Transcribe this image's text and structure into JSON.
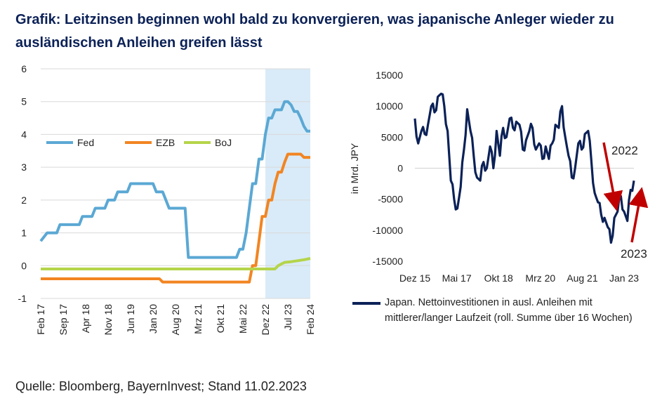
{
  "title": "Grafik: Leitzinsen beginnen wohl bald zu konvergieren, was japanische Anleger wieder zu ausländischen Anleihen greifen lässt",
  "source": "Quelle: Bloomberg, BayernInvest; Stand 11.02.2023",
  "colors": {
    "fed": "#5ba8d4",
    "ezb": "#f28522",
    "boj": "#b5d44a",
    "japan": "#0b2157",
    "arrow": "#c00000",
    "shade": "#d9ebf8"
  },
  "chart_data": [
    {
      "type": "line",
      "ylim": [
        -1,
        6
      ],
      "yticks": [
        "6",
        "5",
        "4",
        "3",
        "2",
        "1",
        "0",
        "-1"
      ],
      "xticks": [
        "Feb 17",
        "Sep 17",
        "Apr 18",
        "Nov 18",
        "Jun 19",
        "Jan 20",
        "Aug 20",
        "Mrz 21",
        "Okt 21",
        "Mai 22",
        "Dez 22",
        "Jul 23",
        "Feb 24"
      ],
      "shaded_region": [
        "Dez 22",
        "Feb 24"
      ],
      "legend_placement": "middle-left",
      "series": [
        {
          "name": "Fed",
          "color": "#5ba8d4",
          "values": [
            [
              0,
              0.75
            ],
            [
              2,
              1.0
            ],
            [
              5,
              1.0
            ],
            [
              6,
              1.25
            ],
            [
              12,
              1.25
            ],
            [
              13,
              1.5
            ],
            [
              16,
              1.5
            ],
            [
              17,
              1.75
            ],
            [
              20,
              1.75
            ],
            [
              21,
              2.0
            ],
            [
              23,
              2.0
            ],
            [
              24,
              2.25
            ],
            [
              27,
              2.25
            ],
            [
              28,
              2.5
            ],
            [
              35,
              2.5
            ],
            [
              36,
              2.25
            ],
            [
              38,
              2.25
            ],
            [
              39,
              2.0
            ],
            [
              40,
              1.75
            ],
            [
              45,
              1.75
            ],
            [
              46,
              0.25
            ],
            [
              61,
              0.25
            ],
            [
              62,
              0.5
            ],
            [
              63,
              0.5
            ],
            [
              64,
              1.0
            ],
            [
              65,
              1.75
            ],
            [
              66,
              2.5
            ],
            [
              67,
              2.5
            ],
            [
              68,
              3.25
            ],
            [
              69,
              3.25
            ],
            [
              70,
              4.0
            ],
            [
              71,
              4.5
            ],
            [
              72,
              4.5
            ],
            [
              73,
              4.75
            ],
            [
              75,
              4.75
            ],
            [
              76,
              5.0
            ],
            [
              77,
              5.0
            ],
            [
              78,
              4.9
            ],
            [
              79,
              4.7
            ],
            [
              80,
              4.7
            ],
            [
              81,
              4.5
            ],
            [
              82,
              4.25
            ],
            [
              83,
              4.1
            ],
            [
              84,
              4.1
            ]
          ]
        },
        {
          "name": "EZB",
          "color": "#f28522",
          "values": [
            [
              0,
              -0.4
            ],
            [
              37,
              -0.4
            ],
            [
              38,
              -0.5
            ],
            [
              65,
              -0.5
            ],
            [
              66,
              0.0
            ],
            [
              67,
              0.0
            ],
            [
              68,
              0.75
            ],
            [
              69,
              1.5
            ],
            [
              70,
              1.5
            ],
            [
              71,
              2.0
            ],
            [
              72,
              2.0
            ],
            [
              73,
              2.5
            ],
            [
              74,
              2.85
            ],
            [
              75,
              2.85
            ],
            [
              76,
              3.15
            ],
            [
              77,
              3.4
            ],
            [
              81,
              3.4
            ],
            [
              82,
              3.3
            ],
            [
              84,
              3.3
            ]
          ]
        },
        {
          "name": "BoJ",
          "color": "#b5d44a",
          "values": [
            [
              0,
              -0.1
            ],
            [
              73,
              -0.1
            ],
            [
              74,
              0.0
            ],
            [
              75,
              0.05
            ],
            [
              76,
              0.1
            ],
            [
              78,
              0.12
            ],
            [
              80,
              0.15
            ],
            [
              82,
              0.18
            ],
            [
              84,
              0.22
            ]
          ]
        }
      ]
    },
    {
      "type": "line",
      "ylabel": "in Mrd. JPY",
      "ylim": [
        -15000,
        15000
      ],
      "yticks": [
        "15000",
        "10000",
        "5000",
        "0",
        "-5000",
        "-10000",
        "-15000"
      ],
      "xticks": [
        "Dez 15",
        "Mai 17",
        "Okt 18",
        "Mrz 20",
        "Aug 21",
        "Jan 23"
      ],
      "annotations": [
        "2022",
        "2023"
      ],
      "series": [
        {
          "name": "Japan. Nettoinvestitionen in ausl. Anleihen mit mittlerer/langer Laufzeit (roll. Summe über 16 Wochen)",
          "color": "#0b2157",
          "values": [
            [
              0,
              8000
            ],
            [
              1,
              4000
            ],
            [
              2,
              6000
            ],
            [
              3,
              5500
            ],
            [
              4,
              7000
            ],
            [
              5,
              10000
            ],
            [
              6,
              9000
            ],
            [
              7,
              11500
            ],
            [
              8,
              12000
            ],
            [
              9,
              10000
            ],
            [
              10,
              6000
            ],
            [
              11,
              -2000
            ],
            [
              12,
              -5000
            ],
            [
              13,
              -6500
            ],
            [
              14,
              -3000
            ],
            [
              15,
              3000
            ],
            [
              16,
              9500
            ],
            [
              17,
              6000
            ],
            [
              18,
              2000
            ],
            [
              19,
              -1500
            ],
            [
              20,
              -2000
            ],
            [
              21,
              1000
            ],
            [
              22,
              0
            ],
            [
              23,
              3500
            ],
            [
              24,
              0
            ],
            [
              25,
              6000
            ],
            [
              26,
              2000
            ],
            [
              27,
              6500
            ],
            [
              28,
              5000
            ],
            [
              29,
              8000
            ],
            [
              30,
              6500
            ],
            [
              31,
              7500
            ],
            [
              32,
              7000
            ],
            [
              33,
              3000
            ],
            [
              34,
              4500
            ],
            [
              35,
              6000
            ],
            [
              36,
              6500
            ],
            [
              37,
              3000
            ],
            [
              38,
              4000
            ],
            [
              39,
              1500
            ],
            [
              40,
              3500
            ],
            [
              41,
              1500
            ],
            [
              42,
              4000
            ],
            [
              43,
              7000
            ],
            [
              44,
              6500
            ],
            [
              45,
              10000
            ],
            [
              46,
              5000
            ],
            [
              47,
              2000
            ],
            [
              48,
              -1500
            ],
            [
              49,
              0
            ],
            [
              50,
              4000
            ],
            [
              51,
              3000
            ],
            [
              52,
              5500
            ],
            [
              53,
              6000
            ],
            [
              54,
              1000
            ],
            [
              55,
              -4000
            ],
            [
              56,
              -5500
            ],
            [
              57,
              -7500
            ],
            [
              58,
              -8000
            ],
            [
              59,
              -9500
            ],
            [
              60,
              -12000
            ],
            [
              61,
              -8000
            ],
            [
              62,
              -7000
            ],
            [
              63,
              -4500
            ],
            [
              64,
              -7000
            ],
            [
              65,
              -8500
            ],
            [
              66,
              -3500
            ],
            [
              67,
              -2000
            ]
          ]
        }
      ]
    }
  ]
}
